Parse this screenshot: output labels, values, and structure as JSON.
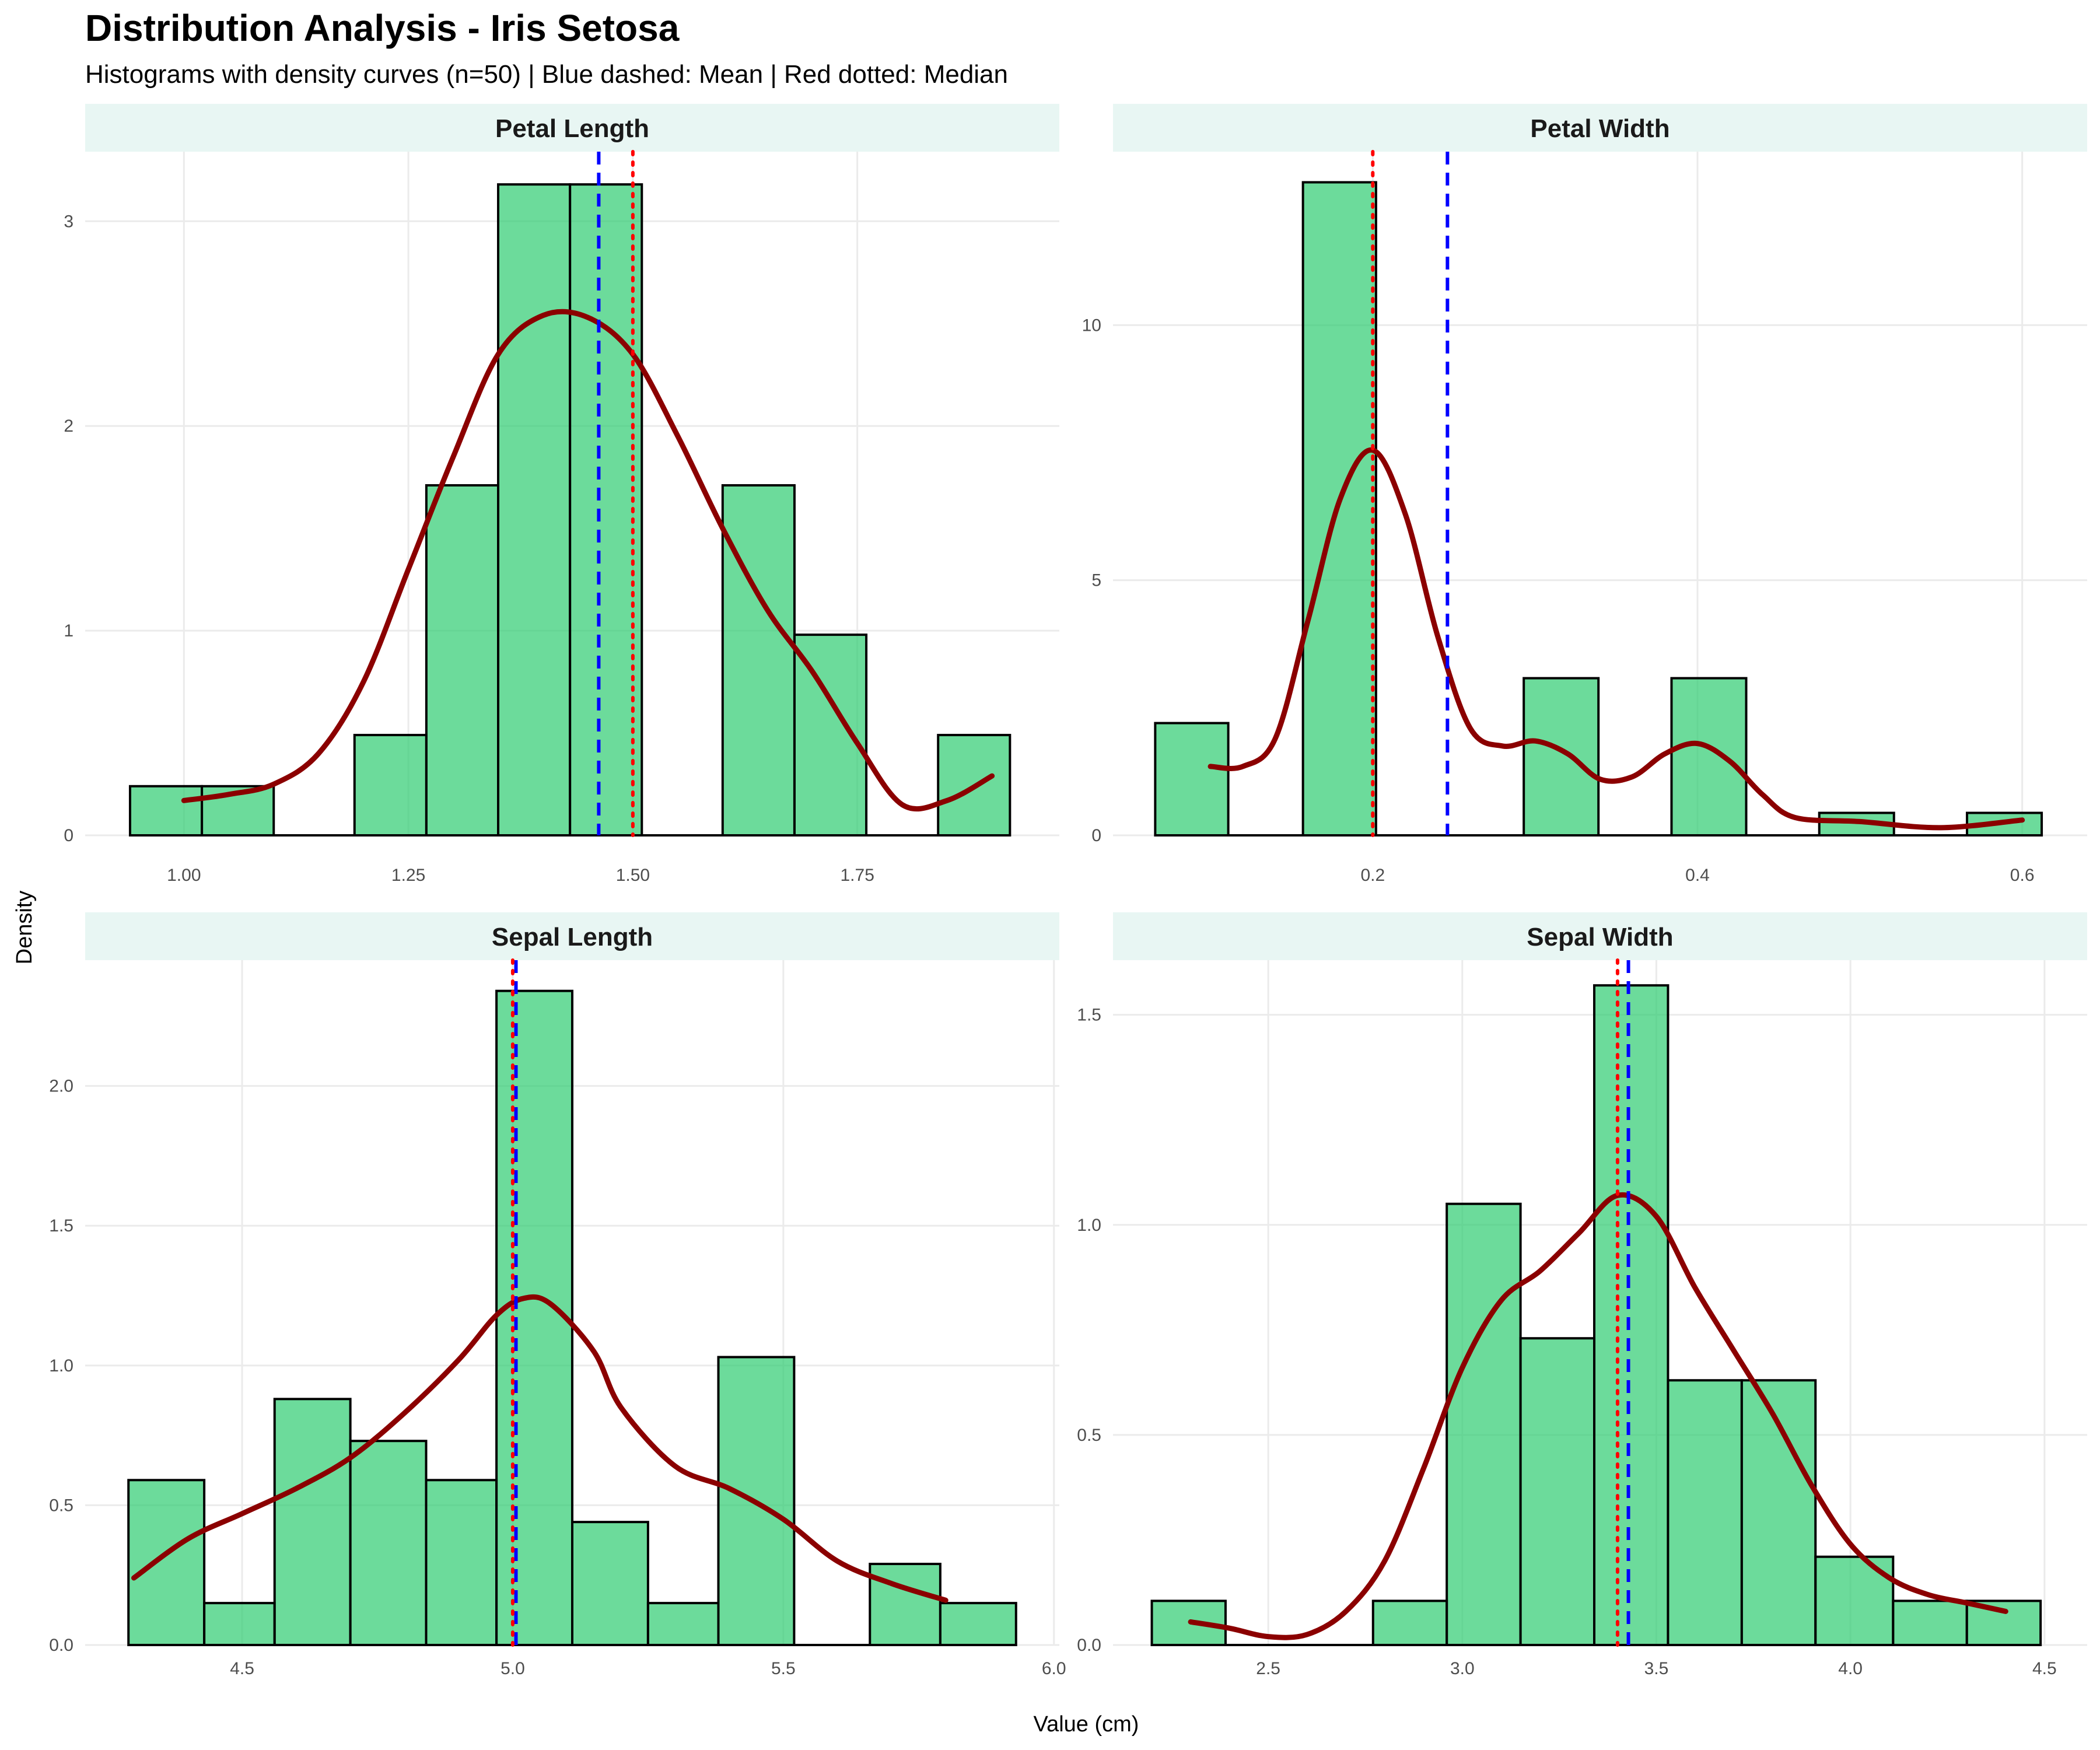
{
  "title": "Distribution Analysis - Iris Setosa",
  "subtitle": "Histograms with density curves (n=50) | Blue dashed: Mean | Red dotted: Median",
  "xlabel": "Value (cm)",
  "ylabel": "Density",
  "colors": {
    "bar_fill": "#2ECC71",
    "bar_outline": "#000000",
    "density_curve": "#8B0000",
    "mean_line": "#0000FF",
    "median_line": "#FF0000",
    "strip_background": "#E8F6F3",
    "grid": "#EBEBEB"
  },
  "chart_data": [
    {
      "type": "bar",
      "facet": "Petal Length",
      "bin_width": 0.082,
      "bins": [
        {
          "start": 0.94,
          "end": 1.02,
          "density": 0.24
        },
        {
          "start": 1.02,
          "end": 1.1,
          "density": 0.24
        },
        {
          "start": 1.1,
          "end": 1.19,
          "density": 0
        },
        {
          "start": 1.19,
          "end": 1.27,
          "density": 0.49
        },
        {
          "start": 1.27,
          "end": 1.35,
          "density": 1.71
        },
        {
          "start": 1.35,
          "end": 1.43,
          "density": 3.18
        },
        {
          "start": 1.43,
          "end": 1.51,
          "density": 3.18
        },
        {
          "start": 1.51,
          "end": 1.6,
          "density": 0
        },
        {
          "start": 1.6,
          "end": 1.68,
          "density": 1.71
        },
        {
          "start": 1.68,
          "end": 1.76,
          "density": 0.98
        },
        {
          "start": 1.76,
          "end": 1.84,
          "density": 0
        },
        {
          "start": 1.84,
          "end": 1.92,
          "density": 0.49
        }
      ],
      "density_curve": [
        [
          1.0,
          0.17
        ],
        [
          1.05,
          0.2
        ],
        [
          1.1,
          0.25
        ],
        [
          1.15,
          0.4
        ],
        [
          1.2,
          0.75
        ],
        [
          1.25,
          1.3
        ],
        [
          1.3,
          1.85
        ],
        [
          1.35,
          2.35
        ],
        [
          1.4,
          2.54
        ],
        [
          1.45,
          2.53
        ],
        [
          1.5,
          2.35
        ],
        [
          1.55,
          1.95
        ],
        [
          1.6,
          1.5
        ],
        [
          1.65,
          1.1
        ],
        [
          1.7,
          0.8
        ],
        [
          1.75,
          0.45
        ],
        [
          1.8,
          0.15
        ],
        [
          1.85,
          0.17
        ],
        [
          1.9,
          0.29
        ]
      ],
      "mean": 1.462,
      "median": 1.5,
      "xlim": [
        0.89,
        1.975
      ],
      "ylim": [
        0,
        3.34
      ],
      "x_ticks": [
        1.0,
        1.25,
        1.5,
        1.75
      ],
      "x_tick_labels": [
        "1.00",
        "1.25",
        "1.50",
        "1.75"
      ],
      "y_ticks": [
        0,
        1,
        2,
        3
      ],
      "y_tick_labels": [
        "0",
        "1",
        "2",
        "3"
      ],
      "grid": true
    },
    {
      "type": "bar",
      "facet": "Petal Width",
      "bin_width": 0.0455,
      "bins": [
        {
          "start": 0.066,
          "end": 0.111,
          "density": 2.2
        },
        {
          "start": 0.111,
          "end": 0.157,
          "density": 0
        },
        {
          "start": 0.157,
          "end": 0.202,
          "density": 12.8
        },
        {
          "start": 0.202,
          "end": 0.248,
          "density": 0
        },
        {
          "start": 0.248,
          "end": 0.293,
          "density": 0
        },
        {
          "start": 0.293,
          "end": 0.339,
          "density": 3.08
        },
        {
          "start": 0.339,
          "end": 0.384,
          "density": 0
        },
        {
          "start": 0.384,
          "end": 0.43,
          "density": 3.08
        },
        {
          "start": 0.43,
          "end": 0.475,
          "density": 0
        },
        {
          "start": 0.475,
          "end": 0.521,
          "density": 0.44
        },
        {
          "start": 0.521,
          "end": 0.566,
          "density": 0
        },
        {
          "start": 0.566,
          "end": 0.612,
          "density": 0.44
        }
      ],
      "density_curve": [
        [
          0.1,
          1.35
        ],
        [
          0.12,
          1.35
        ],
        [
          0.14,
          1.9
        ],
        [
          0.16,
          4.2
        ],
        [
          0.18,
          6.6
        ],
        [
          0.2,
          7.55
        ],
        [
          0.22,
          6.3
        ],
        [
          0.24,
          3.9
        ],
        [
          0.26,
          2.1
        ],
        [
          0.28,
          1.75
        ],
        [
          0.3,
          1.85
        ],
        [
          0.32,
          1.6
        ],
        [
          0.34,
          1.1
        ],
        [
          0.36,
          1.15
        ],
        [
          0.38,
          1.6
        ],
        [
          0.4,
          1.8
        ],
        [
          0.42,
          1.45
        ],
        [
          0.44,
          0.8
        ],
        [
          0.46,
          0.35
        ],
        [
          0.5,
          0.27
        ],
        [
          0.55,
          0.15
        ],
        [
          0.6,
          0.3
        ]
      ],
      "mean": 0.246,
      "median": 0.2,
      "xlim": [
        0.04,
        0.64
      ],
      "ylim": [
        0,
        13.4
      ],
      "x_ticks": [
        0.2,
        0.4,
        0.6
      ],
      "x_tick_labels": [
        "0.2",
        "0.4",
        "0.6"
      ],
      "y_ticks": [
        0,
        5,
        10
      ],
      "y_tick_labels": [
        "0",
        "5",
        "10"
      ],
      "grid": true
    },
    {
      "type": "bar",
      "facet": "Sepal Length",
      "bin_width": 0.1364,
      "bins": [
        {
          "start": 4.29,
          "end": 4.43,
          "density": 0.59
        },
        {
          "start": 4.43,
          "end": 4.56,
          "density": 0.15
        },
        {
          "start": 4.56,
          "end": 4.7,
          "density": 0.88
        },
        {
          "start": 4.7,
          "end": 4.84,
          "density": 0.73
        },
        {
          "start": 4.84,
          "end": 4.97,
          "density": 0.59
        },
        {
          "start": 4.97,
          "end": 5.11,
          "density": 2.34
        },
        {
          "start": 5.11,
          "end": 5.25,
          "density": 0.44
        },
        {
          "start": 5.25,
          "end": 5.38,
          "density": 0.15
        },
        {
          "start": 5.38,
          "end": 5.52,
          "density": 1.03
        },
        {
          "start": 5.52,
          "end": 5.66,
          "density": 0
        },
        {
          "start": 5.66,
          "end": 5.79,
          "density": 0.29
        },
        {
          "start": 5.79,
          "end": 5.93,
          "density": 0.15
        }
      ],
      "density_curve": [
        [
          4.3,
          0.24
        ],
        [
          4.4,
          0.38
        ],
        [
          4.5,
          0.47
        ],
        [
          4.6,
          0.56
        ],
        [
          4.7,
          0.67
        ],
        [
          4.8,
          0.83
        ],
        [
          4.9,
          1.02
        ],
        [
          4.97,
          1.18
        ],
        [
          5.02,
          1.24
        ],
        [
          5.07,
          1.22
        ],
        [
          5.15,
          1.05
        ],
        [
          5.2,
          0.85
        ],
        [
          5.3,
          0.64
        ],
        [
          5.4,
          0.56
        ],
        [
          5.5,
          0.45
        ],
        [
          5.6,
          0.3
        ],
        [
          5.7,
          0.22
        ],
        [
          5.8,
          0.16
        ]
      ],
      "mean": 5.006,
      "median": 5.0,
      "xlim": [
        4.21,
        6.01
      ],
      "ylim": [
        0,
        2.45
      ],
      "x_ticks": [
        4.5,
        5.0,
        5.5,
        6.0
      ],
      "x_tick_labels": [
        "4.5",
        "5.0",
        "5.5",
        "6.0"
      ],
      "y_ticks": [
        0,
        0.5,
        1.0,
        1.5,
        2.0
      ],
      "y_tick_labels": [
        "0.0",
        "0.5",
        "1.0",
        "1.5",
        "2.0"
      ],
      "grid": true
    },
    {
      "type": "bar",
      "facet": "Sepal Width",
      "bin_width": 0.1909,
      "bins": [
        {
          "start": 2.2,
          "end": 2.39,
          "density": 0.105
        },
        {
          "start": 2.39,
          "end": 2.58,
          "density": 0
        },
        {
          "start": 2.58,
          "end": 2.77,
          "density": 0
        },
        {
          "start": 2.77,
          "end": 2.96,
          "density": 0.105
        },
        {
          "start": 2.96,
          "end": 3.15,
          "density": 1.05
        },
        {
          "start": 3.15,
          "end": 3.34,
          "density": 0.73
        },
        {
          "start": 3.34,
          "end": 3.53,
          "density": 1.57
        },
        {
          "start": 3.53,
          "end": 3.72,
          "density": 0.63
        },
        {
          "start": 3.72,
          "end": 3.91,
          "density": 0.63
        },
        {
          "start": 3.91,
          "end": 4.11,
          "density": 0.21
        },
        {
          "start": 4.11,
          "end": 4.3,
          "density": 0.105
        },
        {
          "start": 4.3,
          "end": 4.49,
          "density": 0.105
        }
      ],
      "density_curve": [
        [
          2.3,
          0.055
        ],
        [
          2.4,
          0.04
        ],
        [
          2.5,
          0.02
        ],
        [
          2.6,
          0.025
        ],
        [
          2.7,
          0.08
        ],
        [
          2.8,
          0.2
        ],
        [
          2.9,
          0.42
        ],
        [
          3.0,
          0.66
        ],
        [
          3.1,
          0.82
        ],
        [
          3.2,
          0.89
        ],
        [
          3.3,
          0.98
        ],
        [
          3.4,
          1.07
        ],
        [
          3.5,
          1.02
        ],
        [
          3.6,
          0.85
        ],
        [
          3.7,
          0.7
        ],
        [
          3.8,
          0.55
        ],
        [
          3.9,
          0.38
        ],
        [
          4.0,
          0.24
        ],
        [
          4.1,
          0.16
        ],
        [
          4.2,
          0.12
        ],
        [
          4.3,
          0.1
        ],
        [
          4.4,
          0.08
        ]
      ],
      "mean": 3.428,
      "median": 3.4,
      "xlim": [
        2.1,
        4.61
      ],
      "ylim": [
        0,
        1.63
      ],
      "x_ticks": [
        2.5,
        3.0,
        3.5,
        4.0,
        4.5
      ],
      "x_tick_labels": [
        "2.5",
        "3.0",
        "3.5",
        "4.0",
        "4.5"
      ],
      "y_ticks": [
        0,
        0.5,
        1.0,
        1.5
      ],
      "y_tick_labels": [
        "0.0",
        "0.5",
        "1.0",
        "1.5"
      ],
      "grid": true
    }
  ]
}
